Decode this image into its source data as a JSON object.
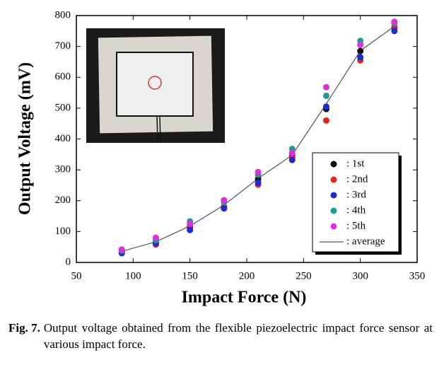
{
  "chart_data": {
    "type": "scatter",
    "xlabel": "Impact Force (N)",
    "ylabel": "Output Voltage (mV)",
    "x": [
      90,
      120,
      150,
      180,
      210,
      240,
      270,
      300,
      330
    ],
    "series": [
      {
        "name": ": 1st",
        "color": "#111111",
        "mode": "markers",
        "values": [
          35,
          65,
          115,
          180,
          270,
          345,
          497,
          685,
          762
        ]
      },
      {
        "name": ": 2nd",
        "color": "#e8231f",
        "mode": "markers",
        "values": [
          33,
          58,
          110,
          178,
          252,
          340,
          460,
          655,
          760
        ]
      },
      {
        "name": ": 3rd",
        "color": "#1c2bd8",
        "mode": "markers",
        "values": [
          30,
          62,
          105,
          175,
          258,
          332,
          505,
          665,
          750
        ]
      },
      {
        "name": ": 4th",
        "color": "#1f9a8f",
        "mode": "markers",
        "values": [
          38,
          72,
          133,
          195,
          285,
          368,
          540,
          718,
          775
        ]
      },
      {
        "name": ": 5th",
        "color": "#e22ee2",
        "mode": "markers",
        "values": [
          42,
          80,
          125,
          202,
          293,
          355,
          568,
          705,
          780
        ]
      },
      {
        "name": ": average",
        "color": "#555555",
        "mode": "line",
        "values": [
          36,
          67,
          118,
          186,
          272,
          348,
          514,
          686,
          765
        ]
      }
    ],
    "xlim": [
      50,
      350
    ],
    "xticks": [
      50,
      100,
      150,
      200,
      250,
      300,
      350
    ],
    "ylim": [
      0,
      800
    ],
    "yticks": [
      0,
      100,
      200,
      300,
      400,
      500,
      600,
      700,
      800
    ],
    "grid": false,
    "legend": "lower right"
  },
  "caption": {
    "label": "Fig. 7.",
    "text": "Output voltage obtained from the flexible piezoelectric impact force sensor at various impact force."
  }
}
